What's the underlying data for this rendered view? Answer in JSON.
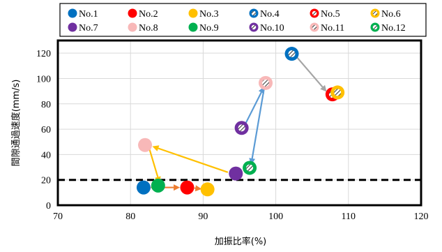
{
  "chart_data": {
    "type": "scatter",
    "xlabel": "加振比率(%)",
    "ylabel": "間隙通過速度(mm/s)",
    "xlim": [
      70,
      120
    ],
    "ylim": [
      0,
      130
    ],
    "xticks": [
      70,
      80,
      90,
      100,
      110,
      120
    ],
    "yticks": [
      0,
      20,
      40,
      60,
      80,
      100,
      120
    ],
    "grid": true,
    "legend_position": "top",
    "reference_line": {
      "y": 20,
      "style": "dashed"
    },
    "series": [
      {
        "name": "No.1",
        "color": "#0070C0",
        "marker": "filled",
        "x": 81.8,
        "y": 14
      },
      {
        "name": "No.2",
        "color": "#FF0000",
        "marker": "filled",
        "x": 87.8,
        "y": 14
      },
      {
        "name": "No.3",
        "color": "#FFC000",
        "marker": "filled",
        "x": 90.6,
        "y": 12.5
      },
      {
        "name": "No.4",
        "color": "#0070C0",
        "marker": "hatched",
        "x": 102.2,
        "y": 119.5
      },
      {
        "name": "No.5",
        "color": "#FF0000",
        "marker": "hatched",
        "x": 107.8,
        "y": 87.5
      },
      {
        "name": "No.6",
        "color": "#FFC000",
        "marker": "hatched",
        "x": 108.5,
        "y": 89
      },
      {
        "name": "No.7",
        "color": "#7030A0",
        "marker": "filled",
        "x": 94.5,
        "y": 25
      },
      {
        "name": "No.8",
        "color": "#F8B8B8",
        "marker": "filled",
        "x": 82.0,
        "y": 47.5
      },
      {
        "name": "No.9",
        "color": "#00B050",
        "marker": "filled",
        "x": 83.8,
        "y": 15.5
      },
      {
        "name": "No.10",
        "color": "#7030A0",
        "marker": "hatched",
        "x": 95.3,
        "y": 61
      },
      {
        "name": "No.11",
        "color": "#F8B8B8",
        "marker": "hatched",
        "x": 98.6,
        "y": 96.5
      },
      {
        "name": "No.12",
        "color": "#00B050",
        "marker": "hatched",
        "x": 96.4,
        "y": 29.5
      }
    ],
    "arrows": [
      {
        "color": "#ED7D31",
        "from": [
          82.8,
          14
        ],
        "to": [
          86.8,
          14
        ]
      },
      {
        "color": "#ED7D31",
        "from": [
          88.8,
          13.5
        ],
        "to": [
          89.8,
          12.8
        ]
      },
      {
        "color": "#FFC000",
        "from": [
          93.4,
          26
        ],
        "to": [
          83.0,
          46.5
        ]
      },
      {
        "color": "#FFC000",
        "from": [
          82.6,
          44.5
        ],
        "to": [
          84.0,
          17.5
        ]
      },
      {
        "color": "#5B9BD5",
        "from": [
          95.8,
          64
        ],
        "to": [
          98.4,
          93.5
        ]
      },
      {
        "color": "#5B9BD5",
        "from": [
          98.4,
          92.5
        ],
        "to": [
          96.6,
          32
        ]
      },
      {
        "color": "#A5A5A5",
        "from": [
          102.8,
          117.5
        ],
        "to": [
          107.0,
          89.5
        ]
      }
    ]
  }
}
